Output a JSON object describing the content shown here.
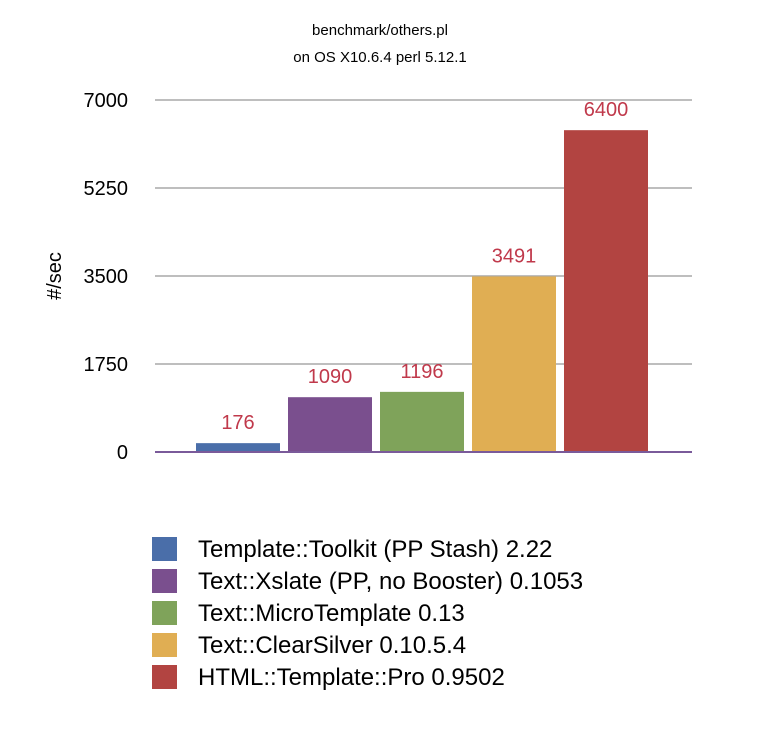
{
  "chart_data": {
    "type": "bar",
    "title": "benchmark/others.pl",
    "subtitle": "on OS X10.6.4 perl 5.12.1",
    "ylabel": "#/sec",
    "xlabel": "",
    "ylim": [
      0,
      7000
    ],
    "yticks": [
      0,
      1750,
      3500,
      5250,
      7000
    ],
    "grid": true,
    "legend_position": "bottom",
    "series": [
      {
        "name": "Template::Toolkit (PP Stash) 2.22",
        "value": 176,
        "color": "#4a6ea9"
      },
      {
        "name": "Text::Xslate (PP, no Booster) 0.1053",
        "value": 1090,
        "color": "#7a4f8e"
      },
      {
        "name": "Text::MicroTemplate 0.13",
        "value": 1196,
        "color": "#7fa35a"
      },
      {
        "name": "Text::ClearSilver 0.10.5.4",
        "value": 3491,
        "color": "#e0ae53"
      },
      {
        "name": "HTML::Template::Pro 0.9502",
        "value": 6400,
        "color": "#b24441"
      }
    ],
    "value_label_color": "#c0394b"
  }
}
